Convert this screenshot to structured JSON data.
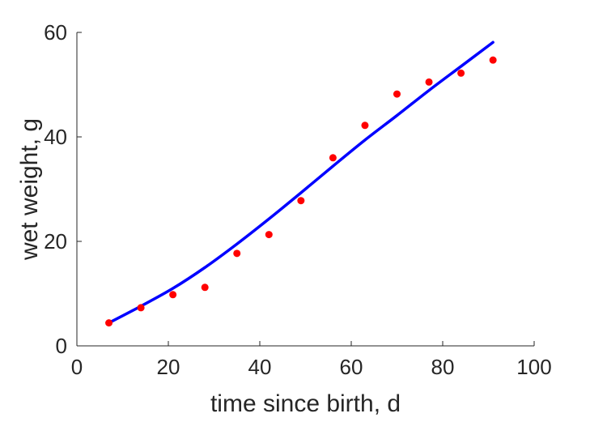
{
  "chart_data": {
    "type": "scatter",
    "title": "",
    "xlabel": "time since birth, d",
    "ylabel": "wet weight, g",
    "xlim": [
      0,
      100
    ],
    "ylim": [
      0,
      60
    ],
    "xticks": [
      0,
      20,
      40,
      60,
      80,
      100
    ],
    "yticks": [
      0,
      20,
      40,
      60
    ],
    "xtick_labels": [
      "0",
      "20",
      "40",
      "60",
      "80",
      "100"
    ],
    "ytick_labels": [
      "0",
      "20",
      "40",
      "60"
    ],
    "grid": false,
    "legend": "none",
    "series": [
      {
        "type": "scatter",
        "color": "#ff0000",
        "x": [
          7,
          14,
          21,
          28,
          35,
          42,
          49,
          56,
          63,
          70,
          77,
          84,
          91
        ],
        "y": [
          4.4,
          7.3,
          9.8,
          11.2,
          17.7,
          21.3,
          27.8,
          36.0,
          42.2,
          48.2,
          50.5,
          52.2,
          54.7
        ]
      },
      {
        "type": "line",
        "color": "#0000ff",
        "x": [
          7,
          14,
          21,
          28,
          35,
          42,
          49,
          56,
          63,
          70,
          77,
          84,
          91
        ],
        "y": [
          4.4,
          7.6,
          11.0,
          15.0,
          19.5,
          24.3,
          29.3,
          34.4,
          39.4,
          44.1,
          48.9,
          53.5,
          58.1
        ]
      }
    ]
  }
}
